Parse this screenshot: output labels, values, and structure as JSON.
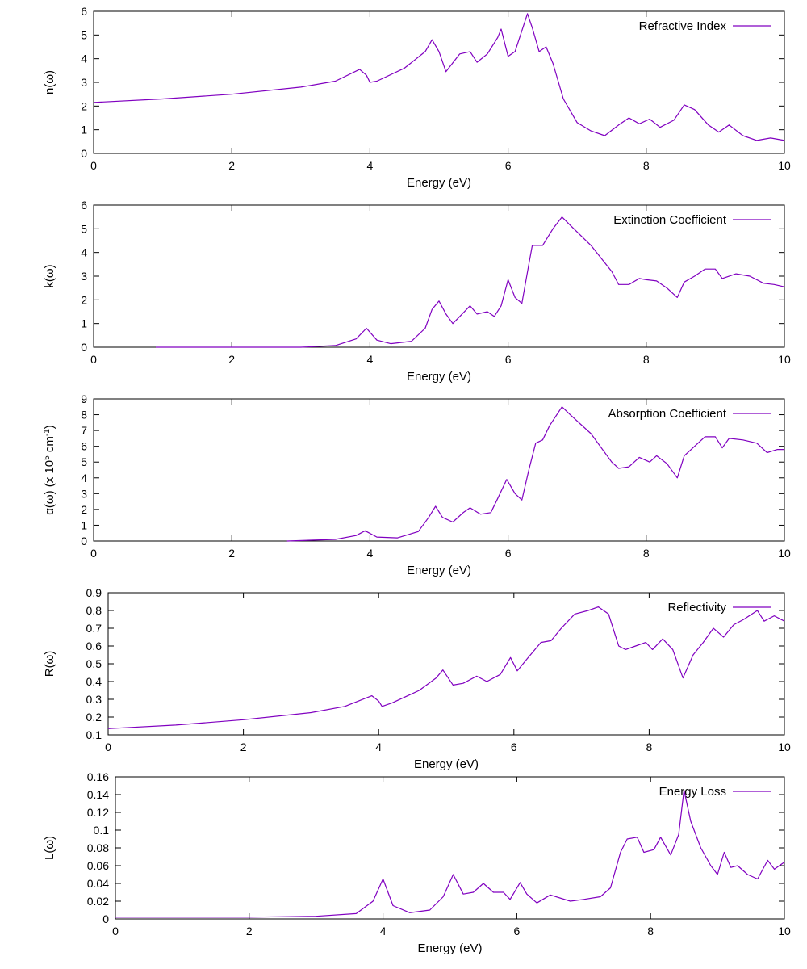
{
  "figure": {
    "line_color": "#8000c0",
    "text_color": "#000000"
  },
  "chart_data": [
    {
      "type": "line",
      "id": "refractive",
      "ylabel": "n(ω)",
      "xlabel": "Energy (eV)",
      "legend": "Refractive Index",
      "legend_position": "top-right",
      "xlim": [
        0,
        10
      ],
      "ylim": [
        0,
        6
      ],
      "xticks": [
        0,
        2,
        4,
        6,
        8,
        10
      ],
      "xtick_labels": [
        "0",
        "2",
        "4",
        "6",
        "8",
        "10"
      ],
      "yticks": [
        0,
        1,
        2,
        3,
        4,
        5,
        6
      ],
      "ytick_labels": [
        "0",
        "1",
        "2",
        "3",
        "4",
        "5",
        "6"
      ],
      "series": [
        {
          "name": "Refractive Index",
          "x": [
            0,
            1,
            2,
            3,
            3.5,
            3.85,
            3.95,
            4.0,
            4.1,
            4.5,
            4.8,
            4.9,
            5.0,
            5.1,
            5.3,
            5.45,
            5.55,
            5.7,
            5.85,
            5.9,
            6.0,
            6.1,
            6.28,
            6.35,
            6.45,
            6.55,
            6.65,
            6.8,
            7.0,
            7.2,
            7.4,
            7.6,
            7.75,
            7.9,
            8.05,
            8.2,
            8.4,
            8.55,
            8.7,
            8.9,
            9.05,
            9.2,
            9.4,
            9.6,
            9.8,
            10.0
          ],
          "y": [
            2.15,
            2.3,
            2.5,
            2.8,
            3.05,
            3.55,
            3.3,
            3.0,
            3.05,
            3.6,
            4.3,
            4.8,
            4.3,
            3.45,
            4.2,
            4.3,
            3.85,
            4.2,
            4.9,
            5.25,
            4.1,
            4.3,
            5.9,
            5.3,
            4.3,
            4.5,
            3.8,
            2.3,
            1.3,
            0.95,
            0.75,
            1.2,
            1.5,
            1.25,
            1.45,
            1.1,
            1.4,
            2.05,
            1.85,
            1.2,
            0.9,
            1.2,
            0.75,
            0.55,
            0.65,
            0.55
          ]
        }
      ]
    },
    {
      "type": "line",
      "id": "extinction",
      "ylabel": "k(ω)",
      "xlabel": "Energy (eV)",
      "legend": "Extinction Coefficient",
      "legend_position": "top-right",
      "xlim": [
        0,
        10
      ],
      "ylim": [
        0,
        6
      ],
      "xticks": [
        0,
        2,
        4,
        6,
        8,
        10
      ],
      "xtick_labels": [
        "0",
        "2",
        "4",
        "6",
        "8",
        "10"
      ],
      "yticks": [
        0,
        1,
        2,
        3,
        4,
        5,
        6
      ],
      "ytick_labels": [
        "0",
        "1",
        "2",
        "3",
        "4",
        "5",
        "6"
      ],
      "series": [
        {
          "name": "Extinction Coefficient",
          "x": [
            0.9,
            2.0,
            3.0,
            3.5,
            3.8,
            3.95,
            4.1,
            4.3,
            4.6,
            4.8,
            4.9,
            5.0,
            5.1,
            5.2,
            5.3,
            5.45,
            5.55,
            5.7,
            5.8,
            5.9,
            6.0,
            6.1,
            6.2,
            6.3,
            6.35,
            6.5,
            6.65,
            6.78,
            6.9,
            7.2,
            7.5,
            7.6,
            7.75,
            7.9,
            8.0,
            8.15,
            8.3,
            8.45,
            8.55,
            8.7,
            8.85,
            9.0,
            9.1,
            9.3,
            9.5,
            9.7,
            9.85,
            10.0
          ],
          "y": [
            0.0,
            0.0,
            0.0,
            0.07,
            0.35,
            0.8,
            0.3,
            0.15,
            0.25,
            0.8,
            1.6,
            1.95,
            1.4,
            1.0,
            1.3,
            1.75,
            1.4,
            1.5,
            1.3,
            1.75,
            2.85,
            2.1,
            1.85,
            3.5,
            4.3,
            4.3,
            5.0,
            5.5,
            5.15,
            4.3,
            3.2,
            2.65,
            2.65,
            2.9,
            2.85,
            2.8,
            2.5,
            2.1,
            2.75,
            3.0,
            3.3,
            3.3,
            2.9,
            3.1,
            3.0,
            2.7,
            2.65,
            2.55
          ]
        }
      ]
    },
    {
      "type": "line",
      "id": "absorption",
      "ylabel": "α(ω) (x 10⁵ cm⁻¹)",
      "ylabel_parts": [
        "α(ω) (x 10",
        "5",
        " cm",
        "-1",
        ")"
      ],
      "xlabel": "Energy (eV)",
      "legend": "Absorption Coefficient",
      "legend_position": "top-right",
      "xlim": [
        0,
        10
      ],
      "ylim": [
        0,
        9
      ],
      "xticks": [
        0,
        2,
        4,
        6,
        8,
        10
      ],
      "xtick_labels": [
        "0",
        "2",
        "4",
        "6",
        "8",
        "10"
      ],
      "yticks": [
        0,
        1,
        2,
        3,
        4,
        5,
        6,
        7,
        8,
        9
      ],
      "ytick_labels": [
        "0",
        "1",
        "2",
        "3",
        "4",
        "5",
        "6",
        "7",
        "8",
        "9"
      ],
      "series": [
        {
          "name": "Absorption Coefficient",
          "x": [
            2.8,
            3.5,
            3.8,
            3.93,
            4.1,
            4.4,
            4.7,
            4.85,
            4.95,
            5.05,
            5.2,
            5.35,
            5.45,
            5.6,
            5.75,
            5.85,
            5.98,
            6.1,
            6.2,
            6.3,
            6.4,
            6.5,
            6.6,
            6.78,
            6.9,
            7.2,
            7.5,
            7.6,
            7.75,
            7.9,
            8.05,
            8.15,
            8.3,
            8.45,
            8.55,
            8.7,
            8.85,
            9.0,
            9.1,
            9.2,
            9.4,
            9.6,
            9.75,
            9.9,
            10.0
          ],
          "y": [
            0.0,
            0.1,
            0.35,
            0.65,
            0.25,
            0.2,
            0.6,
            1.5,
            2.2,
            1.5,
            1.2,
            1.8,
            2.1,
            1.7,
            1.8,
            2.7,
            3.9,
            3.0,
            2.6,
            4.5,
            6.2,
            6.4,
            7.3,
            8.5,
            8.0,
            6.8,
            5.0,
            4.6,
            4.7,
            5.3,
            5.0,
            5.4,
            4.9,
            4.0,
            5.4,
            6.0,
            6.6,
            6.6,
            5.9,
            6.5,
            6.4,
            6.2,
            5.6,
            5.8,
            5.8
          ]
        }
      ]
    },
    {
      "type": "line",
      "id": "reflectivity",
      "ylabel": "R(ω)",
      "xlabel": "Energy (eV)",
      "legend": "Reflectivity",
      "legend_position": "top-right",
      "xlim": [
        0,
        10
      ],
      "ylim": [
        0.1,
        0.9
      ],
      "xticks": [
        0,
        2,
        4,
        6,
        8,
        10
      ],
      "xtick_labels": [
        "0",
        "2",
        "4",
        "6",
        "8",
        "10"
      ],
      "yticks": [
        0.1,
        0.2,
        0.3,
        0.4,
        0.5,
        0.6,
        0.7,
        0.8,
        0.9
      ],
      "ytick_labels": [
        "0.1",
        "0.2",
        "0.3",
        "0.4",
        "0.5",
        "0.6",
        "0.7",
        "0.8",
        "0.9"
      ],
      "series": [
        {
          "name": "Reflectivity",
          "x": [
            0,
            1,
            2,
            3,
            3.5,
            3.9,
            4.0,
            4.05,
            4.2,
            4.6,
            4.85,
            4.95,
            5.1,
            5.25,
            5.45,
            5.6,
            5.8,
            5.95,
            6.05,
            6.2,
            6.4,
            6.55,
            6.7,
            6.9,
            7.1,
            7.25,
            7.4,
            7.55,
            7.65,
            7.8,
            7.95,
            8.05,
            8.2,
            8.35,
            8.5,
            8.65,
            8.8,
            8.95,
            9.1,
            9.25,
            9.4,
            9.6,
            9.7,
            9.85,
            10.0
          ],
          "y": [
            0.135,
            0.155,
            0.185,
            0.225,
            0.26,
            0.32,
            0.29,
            0.26,
            0.28,
            0.35,
            0.42,
            0.465,
            0.38,
            0.39,
            0.43,
            0.4,
            0.44,
            0.535,
            0.46,
            0.53,
            0.62,
            0.63,
            0.7,
            0.78,
            0.8,
            0.82,
            0.78,
            0.6,
            0.58,
            0.6,
            0.62,
            0.58,
            0.64,
            0.58,
            0.42,
            0.55,
            0.62,
            0.7,
            0.65,
            0.72,
            0.75,
            0.8,
            0.74,
            0.77,
            0.74
          ]
        }
      ]
    },
    {
      "type": "line",
      "id": "energy-loss",
      "ylabel": "L(ω)",
      "xlabel": "Energy (eV)",
      "legend": "Energy Loss",
      "legend_position": "top-right",
      "xlim": [
        0,
        10
      ],
      "ylim": [
        0,
        0.16
      ],
      "xticks": [
        0,
        2,
        4,
        6,
        8,
        10
      ],
      "xtick_labels": [
        "0",
        "2",
        "4",
        "6",
        "8",
        "10"
      ],
      "yticks": [
        0,
        0.02,
        0.04,
        0.06,
        0.08,
        0.1,
        0.12,
        0.14,
        0.16
      ],
      "ytick_labels": [
        "0",
        "0.02",
        "0.04",
        "0.06",
        "0.08",
        "0.1",
        "0.12",
        "0.14",
        "0.16"
      ],
      "series": [
        {
          "name": "Energy Loss",
          "x": [
            0,
            2,
            3,
            3.6,
            3.85,
            4.0,
            4.15,
            4.4,
            4.7,
            4.9,
            5.05,
            5.2,
            5.35,
            5.5,
            5.65,
            5.8,
            5.9,
            6.05,
            6.15,
            6.3,
            6.5,
            6.8,
            7.0,
            7.25,
            7.4,
            7.55,
            7.65,
            7.8,
            7.9,
            8.05,
            8.15,
            8.3,
            8.42,
            8.5,
            8.6,
            8.75,
            8.9,
            9.0,
            9.1,
            9.2,
            9.3,
            9.45,
            9.6,
            9.75,
            9.85,
            10.0
          ],
          "y": [
            0.002,
            0.002,
            0.003,
            0.006,
            0.02,
            0.045,
            0.015,
            0.007,
            0.01,
            0.025,
            0.05,
            0.028,
            0.03,
            0.04,
            0.03,
            0.03,
            0.022,
            0.041,
            0.028,
            0.018,
            0.027,
            0.02,
            0.022,
            0.025,
            0.035,
            0.075,
            0.09,
            0.092,
            0.075,
            0.078,
            0.092,
            0.072,
            0.095,
            0.145,
            0.11,
            0.08,
            0.06,
            0.05,
            0.075,
            0.058,
            0.06,
            0.05,
            0.045,
            0.066,
            0.056,
            0.064
          ]
        }
      ]
    }
  ]
}
